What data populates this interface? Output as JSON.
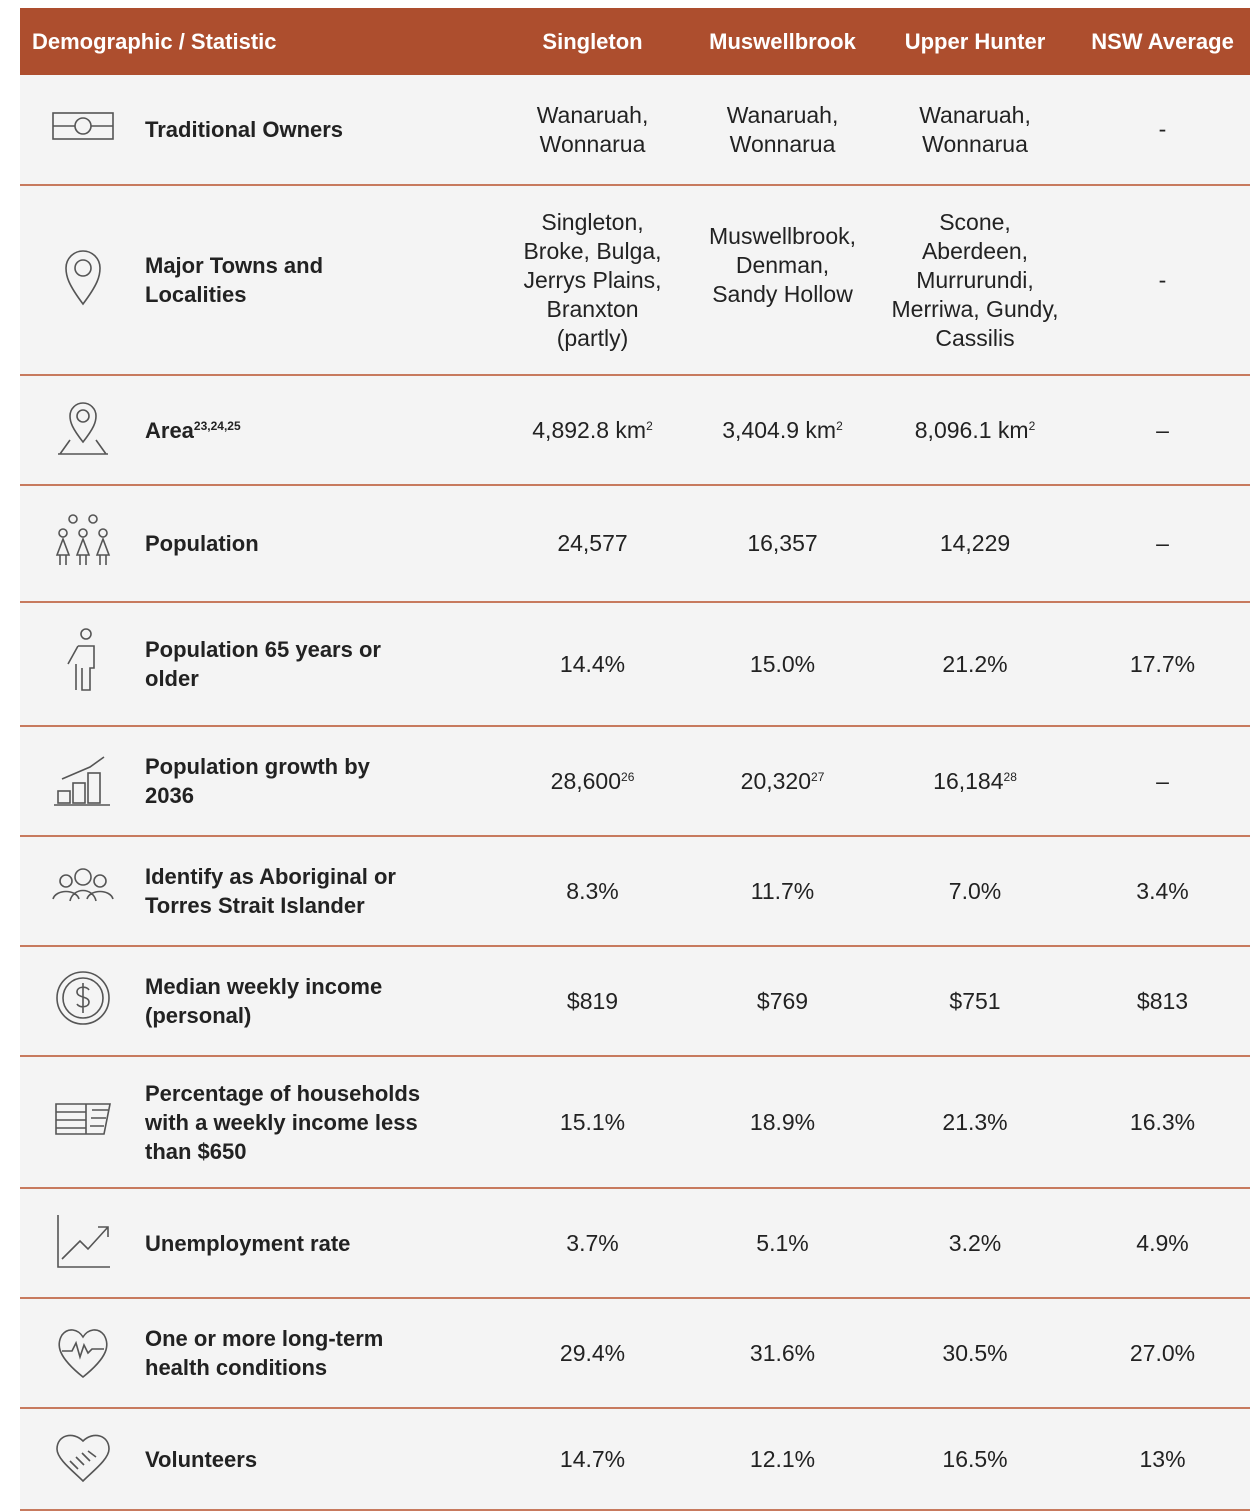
{
  "table": {
    "headers": [
      "Demographic / Statistic",
      "Singleton",
      "Muswellbrook",
      "Upper Hunter",
      "NSW Average"
    ],
    "rows": [
      [
        {
          "text": "Traditional Owners"
        },
        {
          "text": "Wanaruah,\nWonnarua"
        },
        {
          "text": "Wanaruah,\nWonnarua"
        },
        {
          "text": "Wanaruah,\nWonnarua"
        },
        {
          "text": "-"
        }
      ],
      [
        {
          "text": "Major Towns and\nLocalities"
        },
        {
          "text": "Singleton,\nBroke, Bulga,\nJerrys Plains,\nBranxton\n(partly)"
        },
        {
          "text": "Muswellbrook,\nDenman,\nSandy Hollow\n\n"
        },
        {
          "text": "Scone,\nAberdeen,\nMurrurundi,\nMerriwa, Gundy,\nCassilis"
        },
        {
          "text": "-"
        }
      ],
      [
        {
          "text": "Area",
          "sup": "23,24,25"
        },
        {
          "text": "4,892.8 km",
          "sup": "2"
        },
        {
          "text": "3,404.9 km",
          "sup": "2"
        },
        {
          "text": "8,096.1 km",
          "sup": "2"
        },
        {
          "text": "–"
        }
      ],
      [
        {
          "text": "Population"
        },
        {
          "text": "24,577"
        },
        {
          "text": "16,357"
        },
        {
          "text": "14,229"
        },
        {
          "text": "–"
        }
      ],
      [
        {
          "text": "Population 65 years or\nolder"
        },
        {
          "text": "14.4%"
        },
        {
          "text": "15.0%"
        },
        {
          "text": "21.2%"
        },
        {
          "text": "17.7%"
        }
      ],
      [
        {
          "text": "Population growth by\n2036"
        },
        {
          "text": "28,600",
          "sup": "26"
        },
        {
          "text": "20,320",
          "sup": "27"
        },
        {
          "text": "16,184",
          "sup": "28"
        },
        {
          "text": "–"
        }
      ],
      [
        {
          "text": "Identify as Aboriginal or\nTorres Strait Islander"
        },
        {
          "text": "8.3%"
        },
        {
          "text": "11.7%"
        },
        {
          "text": "7.0%"
        },
        {
          "text": "3.4%"
        }
      ],
      [
        {
          "text": "Median weekly income\n(personal)"
        },
        {
          "text": "$819"
        },
        {
          "text": "$769"
        },
        {
          "text": "$751"
        },
        {
          "text": "$813"
        }
      ],
      [
        {
          "text": "Percentage of households\nwith a weekly income less\nthan $650"
        },
        {
          "text": "15.1%"
        },
        {
          "text": "18.9%"
        },
        {
          "text": "21.3%"
        },
        {
          "text": "16.3%"
        }
      ],
      [
        {
          "text": "Unemployment rate"
        },
        {
          "text": "3.7%"
        },
        {
          "text": "5.1%"
        },
        {
          "text": "3.2%"
        },
        {
          "text": "4.9%"
        }
      ],
      [
        {
          "text": "One or more long-term\nhealth conditions"
        },
        {
          "text": "29.4%"
        },
        {
          "text": "31.6%"
        },
        {
          "text": "30.5%"
        },
        {
          "text": "27.0%"
        }
      ],
      [
        {
          "text": "Volunteers"
        },
        {
          "text": "14.7%"
        },
        {
          "text": "12.1%"
        },
        {
          "text": "16.5%"
        },
        {
          "text": "13%"
        }
      ]
    ]
  }
}
